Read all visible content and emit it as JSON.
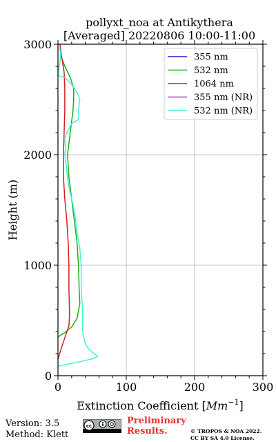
{
  "chart_data": {
    "type": "line",
    "title_lines": [
      "pollyxt_noa at Antikythera",
      "[Averaged] 20220806 10:00-11:00"
    ],
    "xlabel_prefix": "Extinction Coefficient [",
    "xlabel_unit": "Mm",
    "xlabel_exp": "−1",
    "xlabel_suffix": "]",
    "ylabel": "Height (m)",
    "xlim": [
      0,
      300
    ],
    "ylim": [
      0,
      3000
    ],
    "xticks": [
      0,
      100,
      200,
      300
    ],
    "yticks": [
      0,
      1000,
      2000,
      3000
    ],
    "grid": true,
    "legend_position": "top-right",
    "series": [
      {
        "name": "355 nm",
        "color": "#1f1fd6",
        "points": []
      },
      {
        "name": "532 nm",
        "color": "#19b219",
        "points": [
          [
            0,
            350
          ],
          [
            10,
            390
          ],
          [
            20,
            440
          ],
          [
            28,
            520
          ],
          [
            32,
            650
          ],
          [
            31,
            800
          ],
          [
            30,
            1000
          ],
          [
            28,
            1200
          ],
          [
            24,
            1400
          ],
          [
            20,
            1600
          ],
          [
            18,
            1700
          ],
          [
            16,
            1800
          ],
          [
            15,
            1900
          ],
          [
            14,
            2000
          ],
          [
            16,
            2100
          ],
          [
            18,
            2200
          ],
          [
            20,
            2300
          ],
          [
            22,
            2400
          ],
          [
            23,
            2500
          ],
          [
            23,
            2600
          ],
          [
            18,
            2700
          ],
          [
            10,
            2800
          ],
          [
            4,
            2900
          ],
          [
            2,
            3000
          ]
        ]
      },
      {
        "name": "1064 nm",
        "color": "#d41f1f",
        "points": [
          [
            0,
            150
          ],
          [
            5,
            250
          ],
          [
            12,
            380
          ],
          [
            16,
            450
          ],
          [
            17,
            550
          ],
          [
            16,
            800
          ],
          [
            16,
            1000
          ],
          [
            15,
            1200
          ],
          [
            13,
            1400
          ],
          [
            10,
            1600
          ],
          [
            8,
            1800
          ],
          [
            8,
            2000
          ],
          [
            9,
            2200
          ],
          [
            10,
            2400
          ],
          [
            10,
            2600
          ],
          [
            9,
            2750
          ],
          [
            5,
            2900
          ],
          [
            3,
            3000
          ]
        ]
      },
      {
        "name": "355 nm (NR)",
        "color": "#9a3ed6",
        "points": []
      },
      {
        "name": "532 nm (NR)",
        "color": "#3ff5d0",
        "points": [
          [
            0,
            85
          ],
          [
            15,
            105
          ],
          [
            35,
            130
          ],
          [
            52,
            155
          ],
          [
            58,
            175
          ],
          [
            52,
            205
          ],
          [
            45,
            240
          ],
          [
            40,
            290
          ],
          [
            38,
            340
          ],
          [
            36,
            400
          ],
          [
            36,
            500
          ],
          [
            36,
            600
          ],
          [
            35,
            700
          ],
          [
            34,
            800
          ],
          [
            34,
            1000
          ],
          [
            32,
            1150
          ],
          [
            28,
            1300
          ],
          [
            25,
            1450
          ],
          [
            22,
            1550
          ],
          [
            18,
            1650
          ],
          [
            15,
            1750
          ],
          [
            13,
            1850
          ],
          [
            11,
            1950
          ],
          [
            10,
            2000
          ],
          [
            11,
            2060
          ],
          [
            10,
            2150
          ],
          [
            13,
            2200
          ],
          [
            20,
            2280
          ],
          [
            30,
            2320
          ],
          [
            30,
            2400
          ],
          [
            32,
            2500
          ],
          [
            29,
            2550
          ],
          [
            24,
            2600
          ],
          [
            18,
            2650
          ],
          [
            10,
            2700
          ],
          [
            3,
            2710
          ],
          [
            0,
            2720
          ],
          [
            2,
            2800
          ],
          [
            4,
            2900
          ],
          [
            3,
            2950
          ],
          [
            2,
            3000
          ]
        ]
      }
    ]
  },
  "footer": {
    "version": "Version: 3.5",
    "method": "Method: Klett",
    "preliminary_line1": "Preliminary",
    "preliminary_line2": "Results.",
    "copyright_line1": "© TROPOS & NOA 2022.",
    "copyright_line2": "CC BY SA 4.0 License."
  }
}
